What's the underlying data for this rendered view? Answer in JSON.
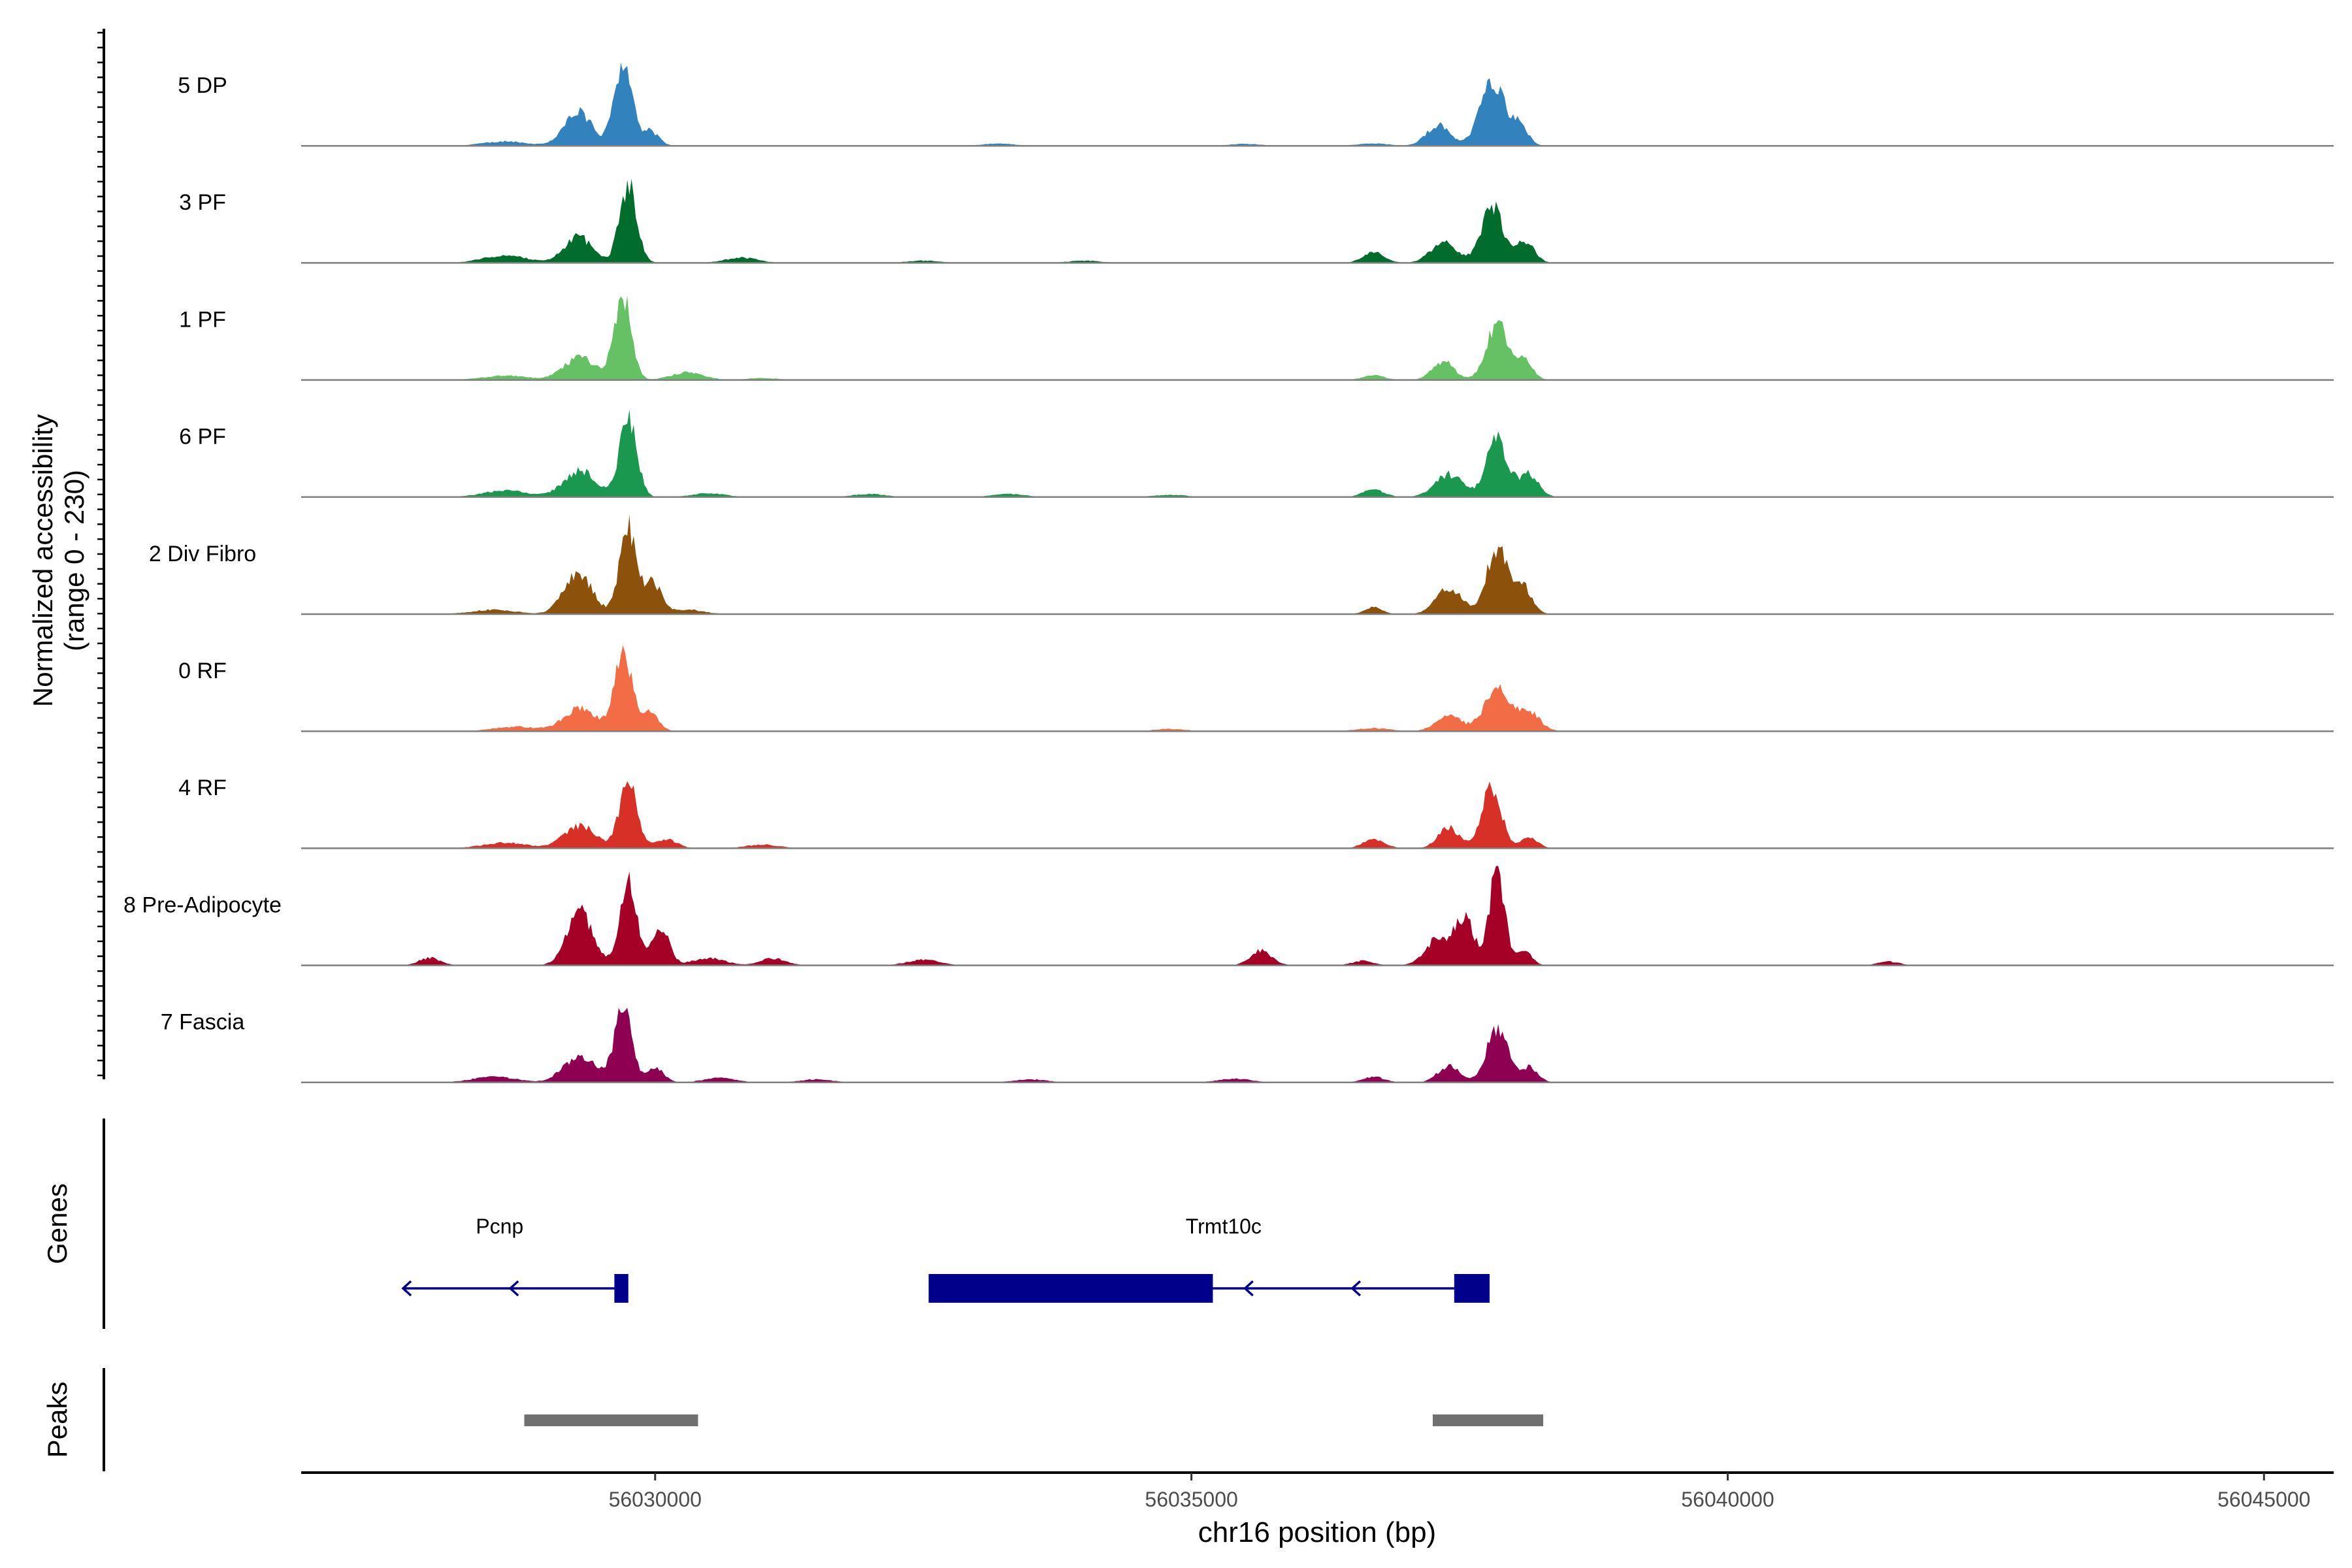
{
  "chart_data": {
    "type": "area",
    "title": "",
    "ylabel_line1": "Normalized accessibility",
    "ylabel_line2": "(range 0 - 230)",
    "xlabel": "chr16 position (bp)",
    "chromosome": "chr16",
    "xlim": [
      56026700,
      56045650
    ],
    "ylim": [
      0,
      230
    ],
    "x_ticks": [
      56030000,
      56035000,
      56040000,
      56045000
    ],
    "x_tick_labels": [
      "56030000",
      "56035000",
      "56040000",
      "56045000"
    ],
    "tracks": [
      {
        "name": "5 DP",
        "color": "#3182bd",
        "peaks": [
          [
            56029280,
            90,
            130
          ],
          [
            56029700,
            230,
            80
          ],
          [
            56029950,
            40,
            80
          ],
          [
            56028600,
            12,
            200
          ],
          [
            56037300,
            55,
            110
          ],
          [
            56037800,
            175,
            110
          ],
          [
            56038050,
            60,
            80
          ],
          [
            56033200,
            6,
            150
          ],
          [
            56035500,
            5,
            150
          ],
          [
            56036700,
            6,
            150
          ]
        ]
      },
      {
        "name": "3 PF",
        "color": "#006d2c",
        "peaks": [
          [
            56029280,
            70,
            130
          ],
          [
            56029750,
            210,
            80
          ],
          [
            56028600,
            20,
            200
          ],
          [
            56030800,
            14,
            150
          ],
          [
            56036700,
            30,
            100
          ],
          [
            56037350,
            55,
            120
          ],
          [
            56037800,
            150,
            100
          ],
          [
            56038100,
            60,
            90
          ],
          [
            56032500,
            6,
            150
          ],
          [
            56034000,
            6,
            150
          ]
        ]
      },
      {
        "name": "1 PF",
        "color": "#66c164",
        "peaks": [
          [
            56029300,
            60,
            150
          ],
          [
            56029700,
            220,
            80
          ],
          [
            56030300,
            20,
            150
          ],
          [
            56028600,
            12,
            200
          ],
          [
            56037350,
            50,
            100
          ],
          [
            56037850,
            150,
            100
          ],
          [
            56038100,
            50,
            80
          ],
          [
            56036700,
            12,
            100
          ],
          [
            56031000,
            5,
            150
          ]
        ]
      },
      {
        "name": "6 PF",
        "color": "#1a9850",
        "peaks": [
          [
            56029300,
            70,
            150
          ],
          [
            56029750,
            205,
            80
          ],
          [
            56028600,
            18,
            200
          ],
          [
            56030500,
            10,
            150
          ],
          [
            56036700,
            20,
            100
          ],
          [
            56037400,
            60,
            130
          ],
          [
            56037850,
            150,
            100
          ],
          [
            56038150,
            60,
            90
          ],
          [
            56032000,
            8,
            150
          ],
          [
            56033300,
            8,
            150
          ],
          [
            56034800,
            6,
            150
          ]
        ]
      },
      {
        "name": "2 Div Fibro",
        "color": "#8c510a",
        "peaks": [
          [
            56029280,
            110,
            130
          ],
          [
            56029750,
            230,
            80
          ],
          [
            56029980,
            80,
            80
          ],
          [
            56028500,
            12,
            200
          ],
          [
            56030300,
            12,
            150
          ],
          [
            56036700,
            20,
            80
          ],
          [
            56037400,
            70,
            120
          ],
          [
            56037850,
            175,
            100
          ],
          [
            56038100,
            70,
            80
          ]
        ]
      },
      {
        "name": "0 RF",
        "color": "#f26d45",
        "peaks": [
          [
            56029300,
            60,
            150
          ],
          [
            56029700,
            220,
            80
          ],
          [
            56029950,
            50,
            80
          ],
          [
            56028700,
            12,
            200
          ],
          [
            56037400,
            40,
            120
          ],
          [
            56037850,
            110,
            120
          ],
          [
            56038150,
            50,
            100
          ],
          [
            56034800,
            6,
            150
          ],
          [
            56036700,
            8,
            150
          ]
        ]
      },
      {
        "name": "4 RF",
        "color": "#d73027",
        "peaks": [
          [
            56029300,
            60,
            150
          ],
          [
            56029750,
            180,
            80
          ],
          [
            56030100,
            25,
            100
          ],
          [
            56028600,
            15,
            200
          ],
          [
            56031000,
            10,
            150
          ],
          [
            56036700,
            25,
            100
          ],
          [
            56037400,
            55,
            100
          ],
          [
            56037800,
            160,
            90
          ],
          [
            56038150,
            30,
            80
          ]
        ]
      },
      {
        "name": "8 Pre-Adipocyte",
        "color": "#a50026",
        "peaks": [
          [
            56027900,
            20,
            100
          ],
          [
            56029300,
            140,
            120
          ],
          [
            56029750,
            215,
            80
          ],
          [
            56030050,
            100,
            80
          ],
          [
            56030500,
            20,
            150
          ],
          [
            56031100,
            18,
            120
          ],
          [
            56032500,
            15,
            150
          ],
          [
            56035650,
            40,
            100
          ],
          [
            56036600,
            12,
            100
          ],
          [
            56037300,
            70,
            120
          ],
          [
            56037550,
            120,
            90
          ],
          [
            56037850,
            255,
            70
          ],
          [
            56038100,
            40,
            70
          ],
          [
            56041500,
            10,
            100
          ]
        ]
      },
      {
        "name": "7 Fascia",
        "color": "#8e0152",
        "peaks": [
          [
            56029300,
            70,
            150
          ],
          [
            56029700,
            195,
            80
          ],
          [
            56030000,
            40,
            80
          ],
          [
            56028500,
            15,
            200
          ],
          [
            56030600,
            12,
            150
          ],
          [
            56031500,
            8,
            150
          ],
          [
            56033500,
            8,
            150
          ],
          [
            56035400,
            10,
            150
          ],
          [
            56036700,
            15,
            100
          ],
          [
            56037400,
            45,
            100
          ],
          [
            56037850,
            140,
            100
          ],
          [
            56038150,
            40,
            80
          ]
        ]
      }
    ],
    "genes_label": "Genes",
    "genes": [
      {
        "name": "Pcnp",
        "label_x": 56028550,
        "strand": "-",
        "intron_start": 56027650,
        "intron_end": 56029620,
        "exons": [
          [
            56029620,
            56029750
          ]
        ],
        "arrows": [
          56027650,
          56028650
        ]
      },
      {
        "name": "Trmt10c",
        "label_x": 56035300,
        "strand": "-",
        "intron_start": 56035200,
        "intron_end": 56037450,
        "exons": [
          [
            56032550,
            56035200
          ],
          [
            56037450,
            56037780
          ]
        ],
        "arrows": [
          56035500,
          56036500
        ]
      }
    ],
    "peaks_label": "Peaks",
    "peak_regions": [
      [
        56028780,
        56030400
      ],
      [
        56037250,
        56038280
      ]
    ]
  },
  "colors": {
    "gene": "#00008b",
    "peak_region": "#707070",
    "baseline": "#7f7f7f"
  }
}
